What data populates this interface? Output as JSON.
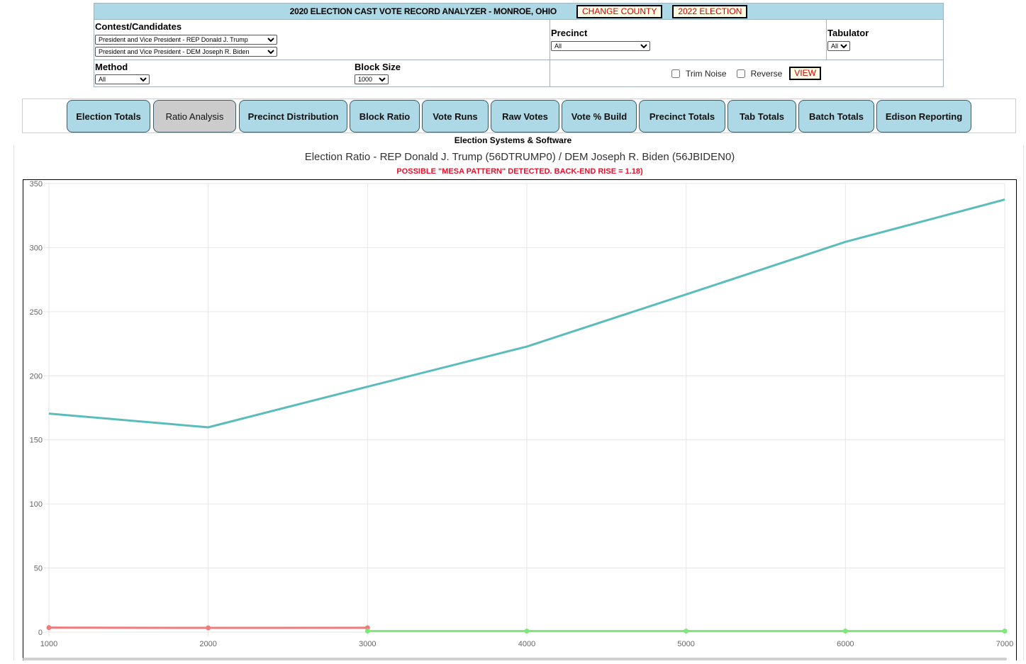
{
  "header": {
    "title": "2020 ELECTION CAST VOTE RECORD ANALYZER - MONROE, OHIO",
    "change_county_label": "CHANGE COUNTY",
    "election_2022_label": "2022 ELECTION"
  },
  "filters": {
    "contest_label": "Contest/Candidates",
    "candidate1": "President and Vice President - REP Donald J. Trump",
    "candidate2": "President and Vice President - DEM Joseph R. Biden",
    "precinct_label": "Precinct",
    "precinct_value": "All",
    "tabulator_label": "Tabulator",
    "tabulator_value": "All",
    "method_label": "Method",
    "method_value": "All",
    "block_size_label": "Block Size",
    "block_size_value": "1000",
    "trim_noise_label": "Trim Noise",
    "reverse_label": "Reverse",
    "view_label": "VIEW"
  },
  "tabs": [
    {
      "label": "Election Totals",
      "active": false
    },
    {
      "label": "Ratio Analysis",
      "active": true
    },
    {
      "label": "Precinct Distribution",
      "active": false
    },
    {
      "label": "Block Ratio",
      "active": false
    },
    {
      "label": "Vote Runs",
      "active": false
    },
    {
      "label": "Raw Votes",
      "active": false
    },
    {
      "label": "Vote % Build",
      "active": false
    },
    {
      "label": "Precinct Totals",
      "active": false
    },
    {
      "label": "Tab Totals",
      "active": false
    },
    {
      "label": "Batch Totals",
      "active": false
    },
    {
      "label": "Edison Reporting",
      "active": false
    }
  ],
  "vendor": "Election Systems & Software",
  "chart_data": {
    "type": "line",
    "title": "Election Ratio - REP Donald J. Trump (56DTRUMP0) / DEM Joseph R. Biden (56JBIDEN0)",
    "warning": "POSSIBLE \"MESA PATTERN\" DETECTED. BACK-END RISE = 1.18)",
    "xlim": [
      1000,
      7000
    ],
    "ylim": [
      0,
      350
    ],
    "x_ticks": [
      "1000",
      "2000",
      "3000",
      "4000",
      "5000",
      "6000",
      "7000"
    ],
    "y_ticks": [
      "0",
      "50",
      "100",
      "150",
      "200",
      "250",
      "300",
      "350"
    ],
    "grid": true,
    "series": [
      {
        "x": [
          1000,
          2000,
          3000,
          4000,
          5000,
          6000,
          7000
        ],
        "y": [
          170.5,
          159.8,
          191.5,
          222.8,
          263.5,
          304.5,
          337.5
        ],
        "color": "#5bbcbc",
        "points": false
      },
      {
        "x": [
          1000,
          2000,
          3000
        ],
        "y": [
          3.5,
          3.3,
          3.4
        ],
        "color": "#ef7c7c",
        "points": true
      },
      {
        "x": [
          3000,
          4000,
          5000,
          6000,
          7000
        ],
        "y": [
          0.8,
          0.8,
          0.8,
          0.8,
          0.8
        ],
        "color": "#7bea7b",
        "points": true
      }
    ]
  }
}
